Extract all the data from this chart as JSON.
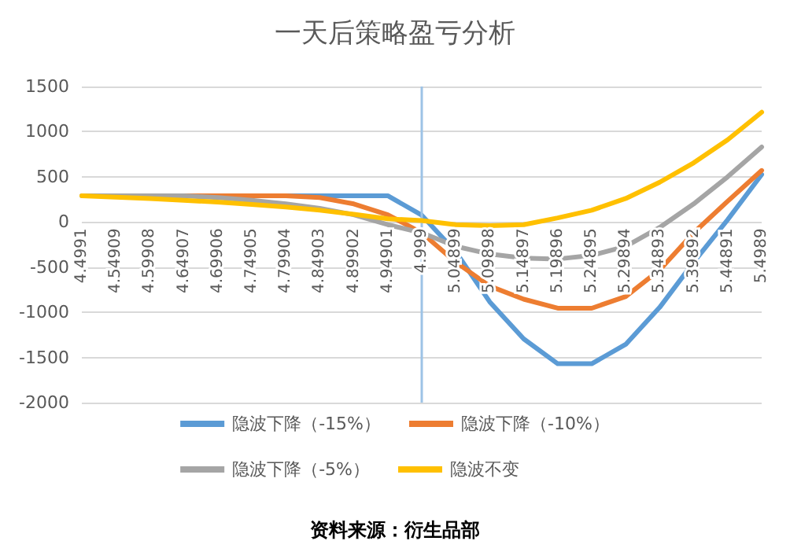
{
  "chart_data": {
    "type": "line",
    "title": "一天后策略盈亏分析",
    "categories": [
      "4.4991",
      "4.54909",
      "4.59908",
      "4.64907",
      "4.69906",
      "4.74905",
      "4.79904",
      "4.84903",
      "4.89902",
      "4.94901",
      "4.999",
      "5.04899",
      "5.09898",
      "5.14897",
      "5.19896",
      "5.24895",
      "5.29894",
      "5.34893",
      "5.39892",
      "5.44891",
      "5.4989"
    ],
    "series": [
      {
        "name": "隐波下降（-15%）",
        "color": "#5b9bd5",
        "values": [
          null,
          null,
          null,
          null,
          null,
          290,
          290,
          290,
          290,
          290,
          75,
          -330,
          -885,
          -1295,
          -1570,
          -1570,
          -1355,
          -945,
          -445,
          25,
          525
        ]
      },
      {
        "name": "隐波下降（-10%）",
        "color": "#ed7d31",
        "values": [
          null,
          null,
          290,
          290,
          290,
          290,
          290,
          270,
          200,
          80,
          -120,
          -445,
          -710,
          -855,
          -955,
          -955,
          -825,
          -530,
          -120,
          230,
          570
        ]
      },
      {
        "name": "隐波下降（-5%）",
        "color": "#a5a5a5",
        "values": [
          290,
          290,
          290,
          290,
          270,
          240,
          200,
          150,
          80,
          -30,
          -120,
          -270,
          -355,
          -400,
          -410,
          -370,
          -270,
          -60,
          200,
          500,
          830
        ]
      },
      {
        "name": "隐波不变",
        "color": "#ffc000",
        "values": [
          290,
          275,
          260,
          240,
          220,
          195,
          165,
          130,
          85,
          35,
          15,
          -30,
          -40,
          -30,
          45,
          130,
          260,
          440,
          655,
          910,
          1215
        ]
      }
    ],
    "ylim": [
      -2000,
      1500
    ],
    "yticks": [
      -2000,
      -1500,
      -1000,
      -500,
      0,
      500,
      1000,
      1500
    ],
    "grid": "y",
    "legend": "bottom",
    "marker": "none",
    "line_style": "solid",
    "ref_lines": [
      {
        "axis": "x",
        "value": "4.999",
        "color": "#9dc3e6"
      }
    ],
    "annotations": [
      "资料来源：衍生品部"
    ]
  }
}
